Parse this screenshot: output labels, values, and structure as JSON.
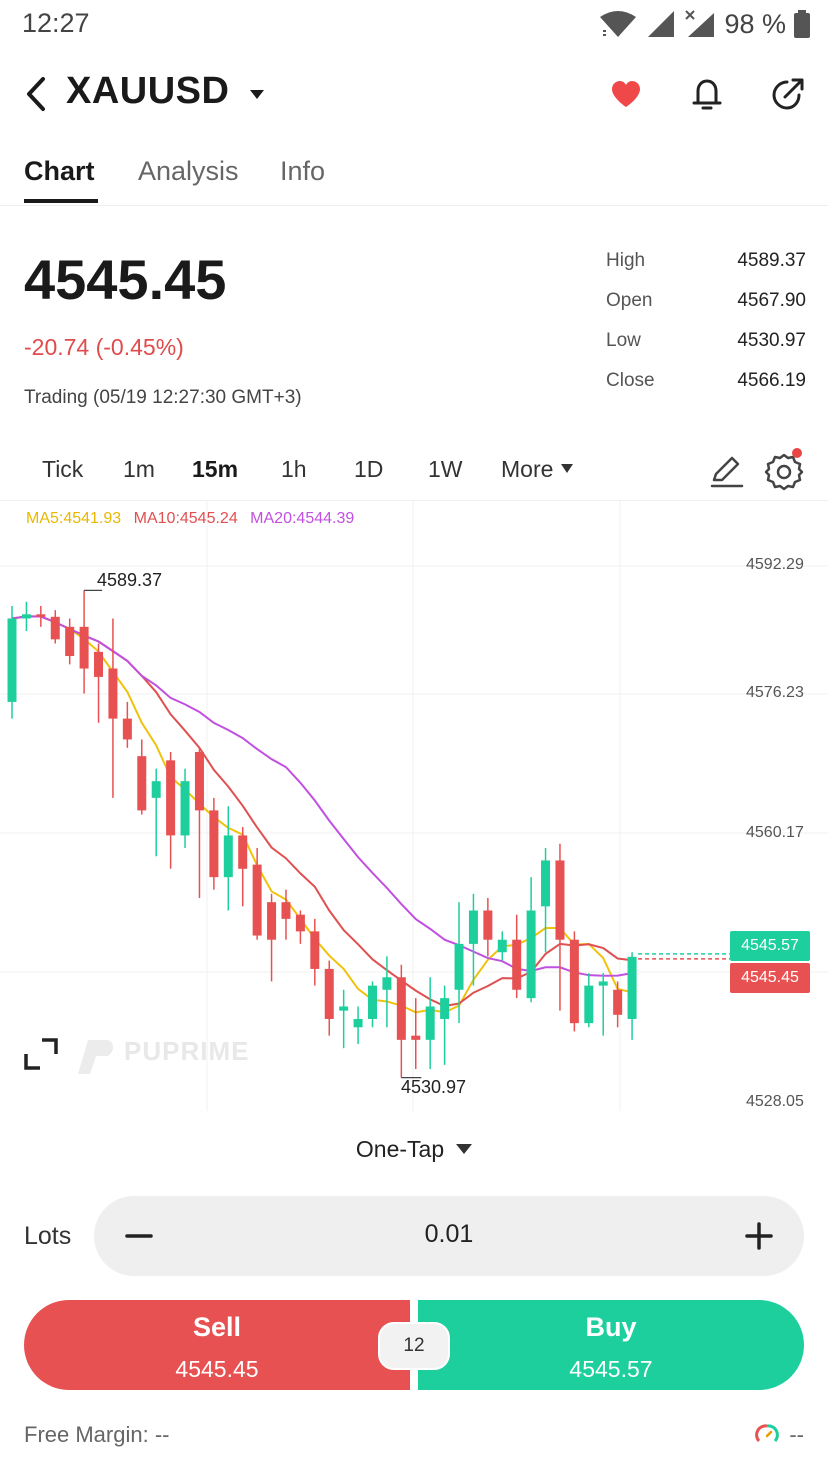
{
  "status_bar": {
    "time": "12:27",
    "battery": "98 %"
  },
  "header": {
    "symbol": "XAUUSD"
  },
  "tabs": [
    {
      "label": "Chart"
    },
    {
      "label": "Analysis"
    },
    {
      "label": "Info"
    }
  ],
  "quote": {
    "price": "4545.45",
    "change": "-20.74 (-0.45%)",
    "trading_status": "Trading (05/19 12:27:30 GMT+3)",
    "ohlc": [
      {
        "label": "High",
        "value": "4589.37"
      },
      {
        "label": "Open",
        "value": "4567.90"
      },
      {
        "label": "Low",
        "value": "4530.97"
      },
      {
        "label": "Close",
        "value": "4566.19"
      }
    ]
  },
  "timeframes": [
    "Tick",
    "1m",
    "15m",
    "1h",
    "1D",
    "1W"
  ],
  "timeframe_selected": "15m",
  "timeframe_more": "More",
  "colors": {
    "up": "#1ecf9e",
    "down": "#e85151",
    "ma5": "#f0c20e",
    "ma10": "#e05050",
    "ma20": "#c150e0"
  },
  "chart_data": {
    "type": "candlestick",
    "moving_averages": [
      {
        "name": "MA5",
        "label": "MA5:4541.93",
        "color": "#f0c20e"
      },
      {
        "name": "MA10",
        "label": "MA10:4545.24",
        "color": "#e05050"
      },
      {
        "name": "MA20",
        "label": "MA20:4544.39",
        "color": "#c150e0"
      }
    ],
    "y_ticks": [
      "4592.29",
      "4576.23",
      "4560.17",
      "4528.05"
    ],
    "ylim": [
      4528.05,
      4592.29
    ],
    "high_marker": "4589.37",
    "low_marker": "4530.97",
    "bid_tag": "4545.45",
    "ask_tag": "4545.57",
    "candles": [
      {
        "o": 4576.0,
        "h": 4587.5,
        "l": 4574.0,
        "c": 4586.0
      },
      {
        "o": 4586.0,
        "h": 4588.0,
        "l": 4584.5,
        "c": 4586.5
      },
      {
        "o": 4586.5,
        "h": 4587.5,
        "l": 4585.0,
        "c": 4586.2
      },
      {
        "o": 4586.2,
        "h": 4587.0,
        "l": 4583.0,
        "c": 4583.5
      },
      {
        "o": 4585.0,
        "h": 4586.0,
        "l": 4580.5,
        "c": 4581.5
      },
      {
        "o": 4585.0,
        "h": 4589.37,
        "l": 4577.0,
        "c": 4580.0
      },
      {
        "o": 4582.0,
        "h": 4583.0,
        "l": 4573.5,
        "c": 4579.0
      },
      {
        "o": 4580.0,
        "h": 4586.0,
        "l": 4564.5,
        "c": 4574.0
      },
      {
        "o": 4574.0,
        "h": 4576.0,
        "l": 4570.5,
        "c": 4571.5
      },
      {
        "o": 4569.5,
        "h": 4571.5,
        "l": 4562.5,
        "c": 4563.0
      },
      {
        "o": 4564.5,
        "h": 4568.0,
        "l": 4557.5,
        "c": 4566.5
      },
      {
        "o": 4569.0,
        "h": 4570.0,
        "l": 4556.0,
        "c": 4560.0
      },
      {
        "o": 4560.0,
        "h": 4568.0,
        "l": 4558.5,
        "c": 4566.5
      },
      {
        "o": 4570.0,
        "h": 4570.5,
        "l": 4552.5,
        "c": 4563.0
      },
      {
        "o": 4563.0,
        "h": 4564.5,
        "l": 4553.5,
        "c": 4555.0
      },
      {
        "o": 4555.0,
        "h": 4563.5,
        "l": 4551.0,
        "c": 4560.0
      },
      {
        "o": 4560.0,
        "h": 4561.0,
        "l": 4551.5,
        "c": 4556.0
      },
      {
        "o": 4556.5,
        "h": 4558.5,
        "l": 4547.5,
        "c": 4548.0
      },
      {
        "o": 4552.0,
        "h": 4553.0,
        "l": 4542.5,
        "c": 4547.5
      },
      {
        "o": 4552.0,
        "h": 4553.5,
        "l": 4547.5,
        "c": 4550.0
      },
      {
        "o": 4550.5,
        "h": 4551.0,
        "l": 4547.0,
        "c": 4548.5
      },
      {
        "o": 4548.5,
        "h": 4550.0,
        "l": 4542.0,
        "c": 4544.0
      },
      {
        "o": 4544.0,
        "h": 4545.0,
        "l": 4536.0,
        "c": 4538.0
      },
      {
        "o": 4539.0,
        "h": 4541.5,
        "l": 4534.5,
        "c": 4539.5
      },
      {
        "o": 4537.0,
        "h": 4539.5,
        "l": 4535.0,
        "c": 4538.0
      },
      {
        "o": 4538.0,
        "h": 4542.5,
        "l": 4537.0,
        "c": 4542.0
      },
      {
        "o": 4541.5,
        "h": 4545.5,
        "l": 4537.0,
        "c": 4543.0
      },
      {
        "o": 4543.0,
        "h": 4544.5,
        "l": 4530.97,
        "c": 4535.5
      },
      {
        "o": 4536.0,
        "h": 4540.5,
        "l": 4532.0,
        "c": 4535.5
      },
      {
        "o": 4535.5,
        "h": 4543.0,
        "l": 4532.0,
        "c": 4539.5
      },
      {
        "o": 4538.0,
        "h": 4542.0,
        "l": 4532.5,
        "c": 4540.5
      },
      {
        "o": 4541.5,
        "h": 4552.0,
        "l": 4537.5,
        "c": 4547.0
      },
      {
        "o": 4547.0,
        "h": 4553.0,
        "l": 4542.0,
        "c": 4551.0
      },
      {
        "o": 4551.0,
        "h": 4552.5,
        "l": 4545.5,
        "c": 4547.5
      },
      {
        "o": 4546.0,
        "h": 4548.5,
        "l": 4545.0,
        "c": 4547.5
      },
      {
        "o": 4547.5,
        "h": 4550.5,
        "l": 4540.5,
        "c": 4541.5
      },
      {
        "o": 4540.5,
        "h": 4555.0,
        "l": 4540.0,
        "c": 4551.0
      },
      {
        "o": 4551.5,
        "h": 4558.5,
        "l": 4546.0,
        "c": 4557.0
      },
      {
        "o": 4557.0,
        "h": 4559.0,
        "l": 4539.0,
        "c": 4547.5
      },
      {
        "o": 4547.5,
        "h": 4548.5,
        "l": 4536.5,
        "c": 4537.5
      },
      {
        "o": 4537.5,
        "h": 4543.5,
        "l": 4537.0,
        "c": 4542.0
      },
      {
        "o": 4542.0,
        "h": 4543.5,
        "l": 4536.0,
        "c": 4542.5
      },
      {
        "o": 4541.5,
        "h": 4542.5,
        "l": 4537.0,
        "c": 4538.5
      },
      {
        "o": 4538.0,
        "h": 4546.0,
        "l": 4535.5,
        "c": 4545.45
      }
    ]
  },
  "watermark": "PUPRIME",
  "order": {
    "mode": "One-Tap",
    "lots_label": "Lots",
    "lots_value": "0.01",
    "sell_label": "Sell",
    "sell_price": "4545.45",
    "buy_label": "Buy",
    "buy_price": "4545.57",
    "spread": "12"
  },
  "footer": {
    "free_margin": "Free Margin: --",
    "margin_level": "--"
  }
}
